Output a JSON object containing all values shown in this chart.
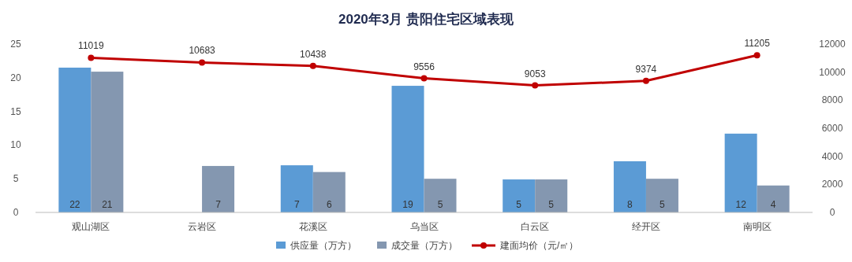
{
  "chart_data": {
    "type": "bar",
    "title": "2020年3月 贵阳住宅区域表现",
    "categories": [
      "观山湖区",
      "云岩区",
      "花溪区",
      "乌当区",
      "白云区",
      "经开区",
      "南明区"
    ],
    "series": [
      {
        "name": "供应量（万方）",
        "color": "#5b9bd5",
        "values": [
          21.5,
          null,
          7.0,
          18.8,
          4.9,
          7.6,
          11.7
        ],
        "value_labels": [
          "22",
          null,
          "7",
          "19",
          "5",
          "8",
          "12"
        ]
      },
      {
        "name": "成交量（万方）",
        "color": "#8497b0",
        "values": [
          20.9,
          6.9,
          6.0,
          5.0,
          4.9,
          5.0,
          4.0
        ],
        "value_labels": [
          "21",
          "7",
          "6",
          "5",
          "5",
          "5",
          "4"
        ]
      },
      {
        "name": "建面均价（元/㎡）",
        "type": "line",
        "axis": "y2",
        "color": "#c00000",
        "marker": "circle",
        "values": [
          11019,
          10683,
          10438,
          9556,
          9053,
          9374,
          11205
        ],
        "value_labels": [
          "11019",
          "10683",
          "10438",
          "9556",
          "9053",
          "9374",
          "11205"
        ]
      }
    ],
    "ylim": [
      0,
      25
    ],
    "yticks": [
      0,
      5,
      10,
      15,
      20,
      25
    ],
    "y2lim": [
      0,
      12000
    ],
    "y2ticks": [
      0,
      2000,
      4000,
      6000,
      8000,
      10000,
      12000
    ],
    "legend": "bottom",
    "grid": false
  }
}
